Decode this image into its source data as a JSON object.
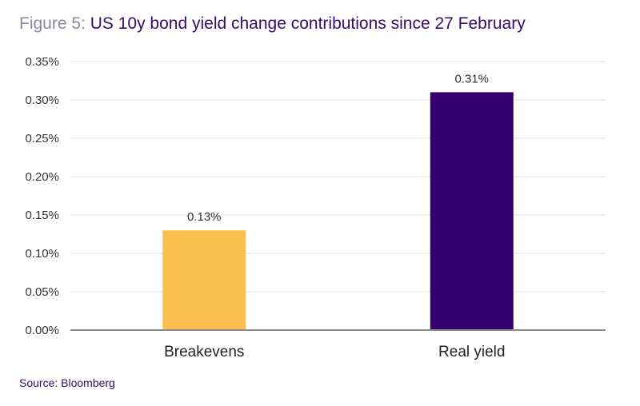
{
  "header": {
    "figure_label": "Figure 5:",
    "title": "US 10y bond yield change contributions since 27 February"
  },
  "source": "Source: Bloomberg",
  "chart_data": {
    "type": "bar",
    "categories": [
      "Breakevens",
      "Real yield"
    ],
    "values": [
      0.13,
      0.31
    ],
    "data_labels": [
      "0.13%",
      "0.31%"
    ],
    "colors": [
      "#fbbf4f",
      "#35006d"
    ],
    "ylim": [
      0,
      0.35
    ],
    "yticks": [
      0,
      0.05,
      0.1,
      0.15,
      0.2,
      0.25,
      0.3,
      0.35
    ],
    "ytick_labels": [
      "0.00%",
      "0.05%",
      "0.10%",
      "0.15%",
      "0.20%",
      "0.25%",
      "0.30%",
      "0.35%"
    ],
    "grid": true,
    "legend": "none"
  }
}
